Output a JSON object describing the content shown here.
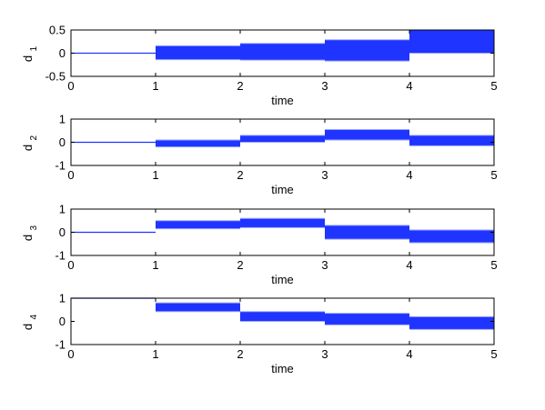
{
  "colors": {
    "band": "#1f34ff",
    "axes": "#000000",
    "background": "#ffffff"
  },
  "chart_data": [
    {
      "type": "area",
      "ylabel_main": "d",
      "ylabel_sub": "1",
      "xlabel": "time",
      "xlim": [
        0,
        5
      ],
      "ylim": [
        -0.5,
        0.5
      ],
      "xticks": [
        "0",
        "1",
        "2",
        "3",
        "4",
        "5"
      ],
      "yticks": [
        "0.5",
        "0",
        "-0.5"
      ],
      "ytick_values": [
        0.5,
        0,
        -0.5
      ],
      "segments": [
        {
          "x": [
            0,
            1
          ],
          "low": 0,
          "high": 0
        },
        {
          "x": [
            1,
            2
          ],
          "low": -0.14,
          "high": 0.16
        },
        {
          "x": [
            2,
            3
          ],
          "low": -0.15,
          "high": 0.21
        },
        {
          "x": [
            3,
            4
          ],
          "low": -0.17,
          "high": 0.29
        },
        {
          "x": [
            4,
            5
          ],
          "low": 0.0,
          "high": 0.5
        }
      ]
    },
    {
      "type": "area",
      "ylabel_main": "d",
      "ylabel_sub": "2",
      "xlabel": "time",
      "xlim": [
        0,
        5
      ],
      "ylim": [
        -1,
        1
      ],
      "xticks": [
        "0",
        "1",
        "2",
        "3",
        "4",
        "5"
      ],
      "yticks": [
        "1",
        "0",
        "-1"
      ],
      "ytick_values": [
        1,
        0,
        -1
      ],
      "segments": [
        {
          "x": [
            0,
            1
          ],
          "low": 0,
          "high": 0
        },
        {
          "x": [
            1,
            2
          ],
          "low": -0.2,
          "high": 0.1
        },
        {
          "x": [
            2,
            3
          ],
          "low": 0.0,
          "high": 0.3
        },
        {
          "x": [
            3,
            4
          ],
          "low": 0.1,
          "high": 0.55
        },
        {
          "x": [
            4,
            5
          ],
          "low": -0.15,
          "high": 0.3
        }
      ]
    },
    {
      "type": "area",
      "ylabel_main": "d",
      "ylabel_sub": "3",
      "xlabel": "time",
      "xlim": [
        0,
        5
      ],
      "ylim": [
        -1,
        1
      ],
      "xticks": [
        "0",
        "1",
        "2",
        "3",
        "4",
        "5"
      ],
      "yticks": [
        "1",
        "0",
        "-1"
      ],
      "ytick_values": [
        1,
        0,
        -1
      ],
      "segments": [
        {
          "x": [
            0,
            1
          ],
          "low": 0,
          "high": 0
        },
        {
          "x": [
            1,
            2
          ],
          "low": 0.15,
          "high": 0.5
        },
        {
          "x": [
            2,
            3
          ],
          "low": 0.2,
          "high": 0.6
        },
        {
          "x": [
            3,
            4
          ],
          "low": -0.3,
          "high": 0.3
        },
        {
          "x": [
            4,
            5
          ],
          "low": -0.45,
          "high": 0.1
        }
      ]
    },
    {
      "type": "area",
      "ylabel_main": "d",
      "ylabel_sub": "4",
      "xlabel": "time",
      "xlim": [
        0,
        5
      ],
      "ylim": [
        -1,
        1
      ],
      "xticks": [
        "0",
        "1",
        "2",
        "3",
        "4",
        "5"
      ],
      "yticks": [
        "1",
        "0",
        "-1"
      ],
      "ytick_values": [
        1,
        0,
        -1
      ],
      "segments": [
        {
          "x": [
            0,
            1
          ],
          "low": 1.0,
          "high": 1.0
        },
        {
          "x": [
            1,
            2
          ],
          "low": 0.42,
          "high": 0.8
        },
        {
          "x": [
            2,
            3
          ],
          "low": 0.0,
          "high": 0.42
        },
        {
          "x": [
            3,
            4
          ],
          "low": -0.15,
          "high": 0.35
        },
        {
          "x": [
            4,
            5
          ],
          "low": -0.35,
          "high": 0.2
        }
      ]
    }
  ]
}
